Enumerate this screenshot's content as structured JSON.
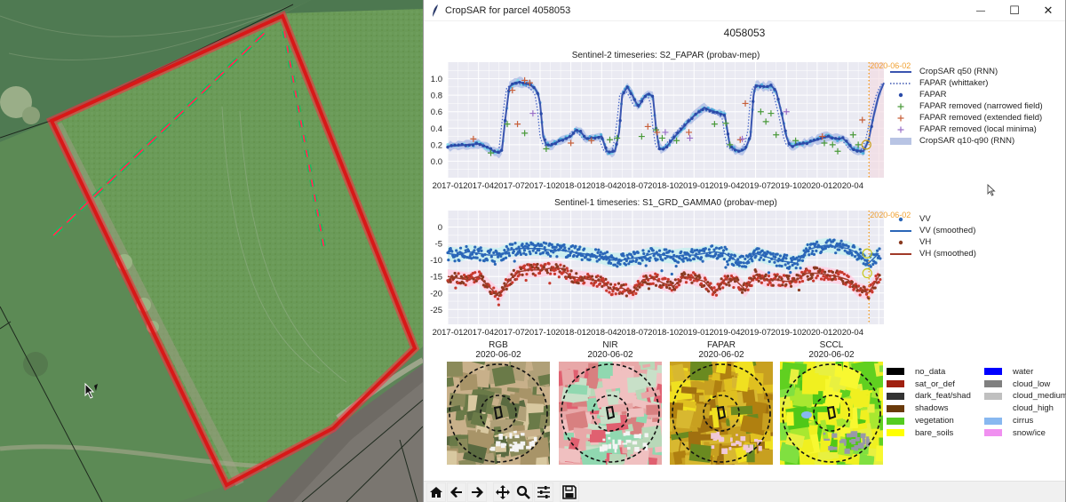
{
  "window": {
    "title": "CropSAR for parcel 4058053",
    "controls": {
      "minimize": "—",
      "maximize": "☐",
      "close": "✕"
    }
  },
  "figure": {
    "title": "4058053"
  },
  "marker_date": "2020-06-02",
  "chart_data": [
    {
      "type": "line",
      "title": "Sentinel-2 timeseries: S2_FAPAR (probav-mep)",
      "xlabel": "",
      "ylabel": "",
      "x_ticks": [
        "2017-01",
        "2017-04",
        "2017-07",
        "2017-10",
        "2018-01",
        "2018-04",
        "2018-07",
        "2018-10",
        "2019-01",
        "2019-04",
        "2019-07",
        "2019-10",
        "2020-01",
        "2020-04"
      ],
      "y_ticks": [
        "0.0",
        "0.2",
        "0.4",
        "0.6",
        "0.8",
        "1.0"
      ],
      "ylim": [
        -0.2,
        1.2
      ],
      "xlim_months": [
        0,
        42.5
      ],
      "grid": true,
      "legend_position": "right-outside",
      "vline": {
        "label": "2020-06-02",
        "month": 41.05,
        "color": "#f0a030"
      },
      "legend": [
        {
          "label": "CropSAR q50 (RNN)",
          "style": "line",
          "color": "#3a55b0"
        },
        {
          "label": "FAPAR (whittaker)",
          "style": "dotted",
          "color": "#3a55b0"
        },
        {
          "label": "FAPAR",
          "style": "dot",
          "color": "#2a4aa8"
        },
        {
          "label": "FAPAR removed (narrowed field)",
          "style": "plus",
          "color": "#4a9a3a"
        },
        {
          "label": "FAPAR removed (extended field)",
          "style": "plus",
          "color": "#c8603a"
        },
        {
          "label": "FAPAR removed (local minima)",
          "style": "plus",
          "color": "#9a70c8"
        },
        {
          "label": "CropSAR q10-q90 (RNN)",
          "style": "band",
          "color": "#b8c4e4"
        }
      ],
      "series": [
        {
          "name": "CropSAR q50 (RNN)",
          "x_months": [
            0,
            1,
            2,
            3,
            3.5,
            4,
            4.5,
            5,
            5.3,
            5.6,
            6,
            6.5,
            7,
            7.5,
            8,
            8.5,
            8.8,
            9,
            9.3,
            9.6,
            10,
            11,
            12,
            12.5,
            13,
            13.5,
            14,
            15,
            15.5,
            16,
            16.3,
            16.7,
            17,
            17.5,
            18,
            18.3,
            18.6,
            19,
            19.3,
            19.6,
            20,
            20.3,
            20.6,
            21,
            21.5,
            22,
            22.5,
            23,
            24,
            25,
            25.5,
            26,
            27,
            27.5,
            28,
            28.5,
            29,
            29.5,
            29.8,
            30,
            30.5,
            31,
            31.5,
            32,
            32.5,
            33,
            33.3,
            33.6,
            34,
            35,
            36,
            37,
            38,
            38.5,
            39,
            39.5,
            40,
            40.5,
            41,
            41.5,
            42,
            42.5
          ],
          "values": [
            0.18,
            0.19,
            0.2,
            0.21,
            0.19,
            0.16,
            0.12,
            0.1,
            0.15,
            0.5,
            0.9,
            0.95,
            0.96,
            0.94,
            0.93,
            0.88,
            0.82,
            0.7,
            0.3,
            0.2,
            0.19,
            0.25,
            0.3,
            0.38,
            0.35,
            0.27,
            0.28,
            0.3,
            0.12,
            0.11,
            0.12,
            0.35,
            0.8,
            0.9,
            0.8,
            0.72,
            0.66,
            0.75,
            0.8,
            0.82,
            0.78,
            0.4,
            0.16,
            0.14,
            0.2,
            0.28,
            0.35,
            0.42,
            0.55,
            0.65,
            0.62,
            0.6,
            0.56,
            0.18,
            0.14,
            0.12,
            0.15,
            0.3,
            0.8,
            0.92,
            0.91,
            0.9,
            0.92,
            0.85,
            0.6,
            0.3,
            0.2,
            0.18,
            0.2,
            0.22,
            0.26,
            0.3,
            0.27,
            0.28,
            0.22,
            0.14,
            0.13,
            0.12,
            0.25,
            0.55,
            0.8,
            0.95
          ]
        },
        {
          "name": "FAPAR removed (narrowed field)",
          "points": [
            [
              4.2,
              0.1
            ],
            [
              5.8,
              0.45
            ],
            [
              7.5,
              0.34
            ],
            [
              9.6,
              0.15
            ],
            [
              15.8,
              0.26
            ],
            [
              16.5,
              0.28
            ],
            [
              18.9,
              0.3
            ],
            [
              20.3,
              0.38
            ],
            [
              20.9,
              0.28
            ],
            [
              22.3,
              0.25
            ],
            [
              26,
              0.45
            ],
            [
              27.5,
              0.2
            ],
            [
              27.1,
              0.46
            ],
            [
              30.5,
              0.6
            ],
            [
              31,
              0.48
            ],
            [
              31.5,
              0.58
            ],
            [
              32,
              0.32
            ],
            [
              33.9,
              0.25
            ],
            [
              36.7,
              0.22
            ],
            [
              37.5,
              0.2
            ],
            [
              38,
              0.12
            ],
            [
              39.5,
              0.32
            ],
            [
              40,
              0.2
            ]
          ]
        },
        {
          "name": "FAPAR removed (extended field)",
          "points": [
            [
              2.5,
              0.27
            ],
            [
              6.3,
              0.86
            ],
            [
              6.8,
              0.45
            ],
            [
              7.5,
              0.98
            ],
            [
              8,
              0.95
            ],
            [
              12,
              0.22
            ],
            [
              14,
              0.25
            ],
            [
              19.5,
              0.42
            ],
            [
              20.4,
              0.35
            ],
            [
              23.5,
              0.35
            ],
            [
              28.5,
              0.26
            ],
            [
              29,
              0.7
            ],
            [
              36.5,
              0.3
            ],
            [
              40.4,
              0.5
            ]
          ]
        },
        {
          "name": "FAPAR removed (local minima)",
          "points": [
            [
              8.3,
              0.58
            ],
            [
              21.2,
              0.35
            ],
            [
              23.6,
              0.28
            ],
            [
              28.7,
              0.27
            ],
            [
              33,
              0.6
            ]
          ]
        }
      ]
    },
    {
      "type": "scatter",
      "title": "Sentinel-1 timeseries: S1_GRD_GAMMA0 (probav-mep)",
      "xlabel": "",
      "ylabel": "",
      "x_ticks": [
        "2017-01",
        "2017-04",
        "2017-07",
        "2017-10",
        "2018-01",
        "2018-04",
        "2018-07",
        "2018-10",
        "2019-01",
        "2019-04",
        "2019-07",
        "2019-10",
        "2020-01",
        "2020-04"
      ],
      "y_ticks": [
        "-25",
        "-20",
        "-15",
        "-10",
        "-5",
        "0"
      ],
      "ylim": [
        -29.5,
        5
      ],
      "xlim_months": [
        0,
        42.5
      ],
      "grid": true,
      "legend_position": "right-outside",
      "vline": {
        "label": "2020-06-02",
        "month": 41.05,
        "color": "#f0a030"
      },
      "legend": [
        {
          "label": "VV",
          "style": "dot",
          "color": "#2a66b8"
        },
        {
          "label": "VV (smoothed)",
          "style": "line",
          "color": "#2a66b8"
        },
        {
          "label": "VH",
          "style": "dot",
          "color": "#8a3a20"
        },
        {
          "label": "VH (smoothed)",
          "style": "line",
          "color": "#a03a28"
        }
      ],
      "series": [
        {
          "name": "VV (smoothed)",
          "x_months": [
            0,
            1,
            2,
            3,
            4,
            5,
            6,
            7,
            8,
            9,
            10,
            11,
            12,
            13,
            14,
            15,
            16,
            17,
            18,
            19,
            20,
            21,
            22,
            23,
            24,
            25,
            26,
            27,
            28,
            29,
            30,
            31,
            32,
            33,
            34,
            35,
            36,
            37,
            38,
            39,
            40,
            41,
            42
          ],
          "values": [
            -8,
            -8.5,
            -7.5,
            -8,
            -8.5,
            -8.5,
            -7,
            -6.5,
            -6.5,
            -6.5,
            -7,
            -7,
            -7.5,
            -8,
            -8.5,
            -9,
            -10,
            -10,
            -9.5,
            -9,
            -8,
            -8.5,
            -9,
            -8.5,
            -8.5,
            -8,
            -7.5,
            -8,
            -10,
            -11,
            -8,
            -9,
            -10,
            -10.5,
            -11,
            -7,
            -6,
            -5.5,
            -6,
            -6.5,
            -8,
            -11,
            -8
          ]
        },
        {
          "name": "VH (smoothed)",
          "x_months": [
            0,
            1,
            2,
            3,
            4,
            5,
            6,
            7,
            8,
            9,
            10,
            11,
            12,
            13,
            14,
            15,
            16,
            17,
            18,
            19,
            20,
            21,
            22,
            23,
            24,
            25,
            26,
            27,
            28,
            29,
            30,
            31,
            32,
            33,
            34,
            35,
            36,
            37,
            38,
            39,
            40,
            41,
            42
          ],
          "values": [
            -15,
            -15.5,
            -16,
            -15,
            -18,
            -21,
            -16,
            -13.5,
            -13,
            -13,
            -12.5,
            -12.5,
            -15,
            -15.5,
            -16,
            -16.5,
            -19,
            -18.5,
            -20,
            -16,
            -15.5,
            -17,
            -18,
            -15,
            -15.5,
            -16.5,
            -20,
            -16,
            -16,
            -19,
            -14.5,
            -16,
            -16,
            -16.5,
            -16,
            -14,
            -14,
            -14.5,
            -15,
            -16,
            -19,
            -20,
            -15
          ]
        }
      ]
    }
  ],
  "thumbnails": [
    {
      "label": "RGB",
      "date": "2020-06-02"
    },
    {
      "label": "NIR",
      "date": "2020-06-02"
    },
    {
      "label": "FAPAR",
      "date": "2020-06-02"
    },
    {
      "label": "SCCL",
      "date": "2020-06-02"
    }
  ],
  "sccl_legend": [
    {
      "label": "no_data",
      "color": "#000000"
    },
    {
      "label": "water",
      "color": "#0000ff"
    },
    {
      "label": "sat_or_def",
      "color": "#a02010"
    },
    {
      "label": "cloud_low",
      "color": "#808080"
    },
    {
      "label": "dark_feat/shad",
      "color": "#333333"
    },
    {
      "label": "cloud_medium",
      "color": "#c0c0c0"
    },
    {
      "label": "shadows",
      "color": "#6a3a0a"
    },
    {
      "label": "cloud_high",
      "color": "#ffffff"
    },
    {
      "label": "vegetation",
      "color": "#55cc22"
    },
    {
      "label": "cirrus",
      "color": "#88b8f0"
    },
    {
      "label": "bare_soils",
      "color": "#ffff00"
    },
    {
      "label": "snow/ice",
      "color": "#f090f0"
    }
  ],
  "toolbar": [
    {
      "name": "home",
      "tooltip": "Reset original view"
    },
    {
      "name": "back",
      "tooltip": "Back"
    },
    {
      "name": "forward",
      "tooltip": "Forward"
    },
    {
      "name": "pan",
      "tooltip": "Pan"
    },
    {
      "name": "zoom",
      "tooltip": "Zoom"
    },
    {
      "name": "configure",
      "tooltip": "Configure subplots"
    },
    {
      "name": "save",
      "tooltip": "Save"
    }
  ],
  "colors": {
    "plot_bg": "#eaeaf2",
    "grid": "#ffffff",
    "parcel_outline": "#e01818",
    "vline": "#f0a030"
  }
}
